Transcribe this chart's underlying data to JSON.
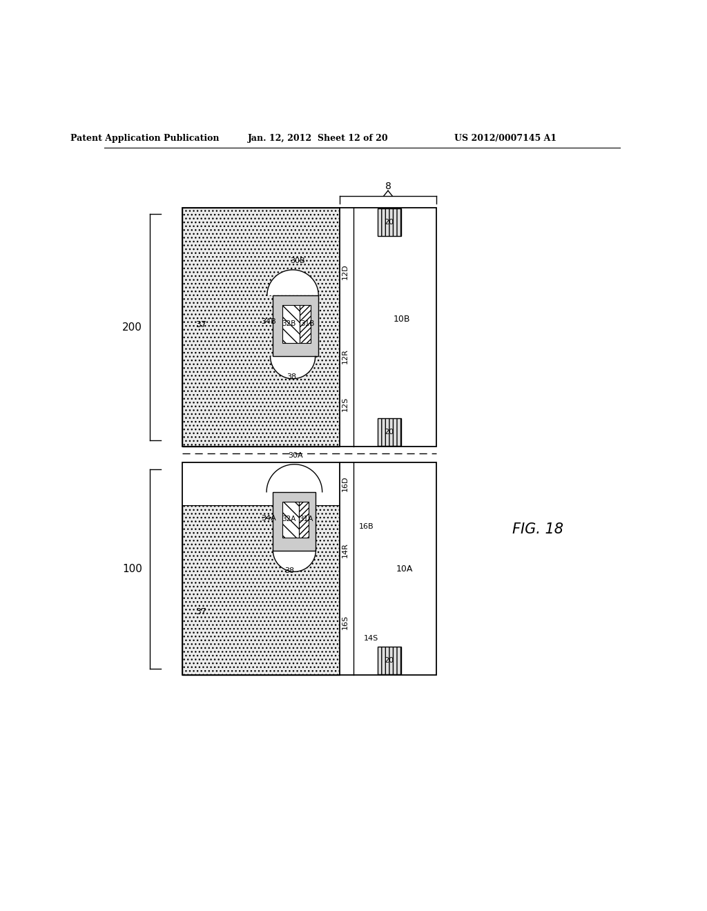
{
  "header_left": "Patent Application Publication",
  "header_mid": "Jan. 12, 2012  Sheet 12 of 20",
  "header_right": "US 2012/0007145 A1",
  "fig_label": "FIG. 18",
  "bg_color": "#ffffff"
}
